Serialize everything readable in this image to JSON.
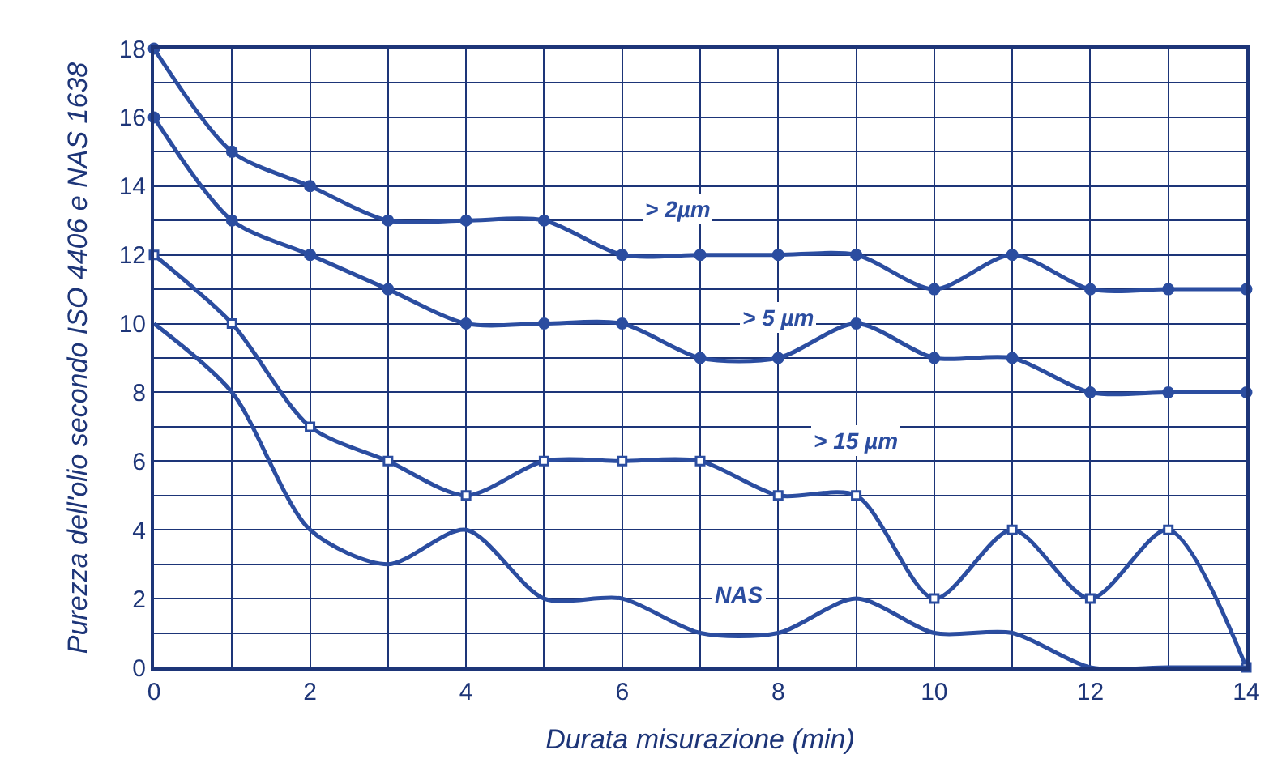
{
  "chart_data": {
    "type": "line",
    "xlabel": "Durata misurazione (min)",
    "ylabel": "Purezza dell'olio secondo ISO 4406 e NAS 1638",
    "x": [
      0,
      1,
      2,
      3,
      4,
      5,
      6,
      7,
      8,
      9,
      10,
      11,
      12,
      13,
      14
    ],
    "series": [
      {
        "name": "> 2µm",
        "color": "#2b4da0",
        "marker": "circle",
        "values": [
          18,
          15,
          14,
          13,
          13,
          13,
          12,
          12,
          12,
          12,
          11,
          12,
          11,
          11,
          11
        ]
      },
      {
        "name": "> 5 µm",
        "color": "#2b4da0",
        "marker": "circle",
        "values": [
          16,
          13,
          12,
          11,
          10,
          10,
          10,
          9,
          9,
          10,
          9,
          9,
          8,
          8,
          8
        ]
      },
      {
        "name": "> 15 µm",
        "color": "#2b4da0",
        "marker": "square",
        "values": [
          12,
          10,
          7,
          6,
          5,
          6,
          6,
          6,
          5,
          5,
          2,
          4,
          2,
          4,
          0
        ]
      },
      {
        "name": "NAS",
        "color": "#2b4da0",
        "marker": "none",
        "values": [
          10,
          8,
          4,
          3,
          4,
          2,
          2,
          1,
          1,
          2,
          1,
          1,
          0,
          0,
          0
        ]
      }
    ],
    "xlim": [
      0,
      14
    ],
    "ylim": [
      0,
      18
    ],
    "xticks": [
      0,
      {
        "value": 1,
        "label": null
      },
      2,
      {
        "value": 3,
        "label": null
      },
      4,
      {
        "value": 5,
        "label": null
      },
      6,
      {
        "value": 7,
        "label": null
      },
      8,
      {
        "value": 9,
        "label": null
      },
      10,
      {
        "value": 11,
        "label": null
      },
      12,
      {
        "value": 13,
        "label": null
      },
      14
    ],
    "yticks": [
      0,
      {
        "value": 1,
        "label": null
      },
      2,
      {
        "value": 3,
        "label": null
      },
      4,
      {
        "value": 5,
        "label": null
      },
      6,
      {
        "value": 7,
        "label": null
      },
      8,
      {
        "value": 9,
        "label": null
      },
      10,
      {
        "value": 11,
        "label": null
      },
      12,
      {
        "value": 13,
        "label": null
      },
      14,
      {
        "value": 15,
        "label": null
      },
      16,
      {
        "value": 17,
        "label": null
      },
      18
    ],
    "grid": true,
    "legend": false,
    "line_style": "solid"
  }
}
